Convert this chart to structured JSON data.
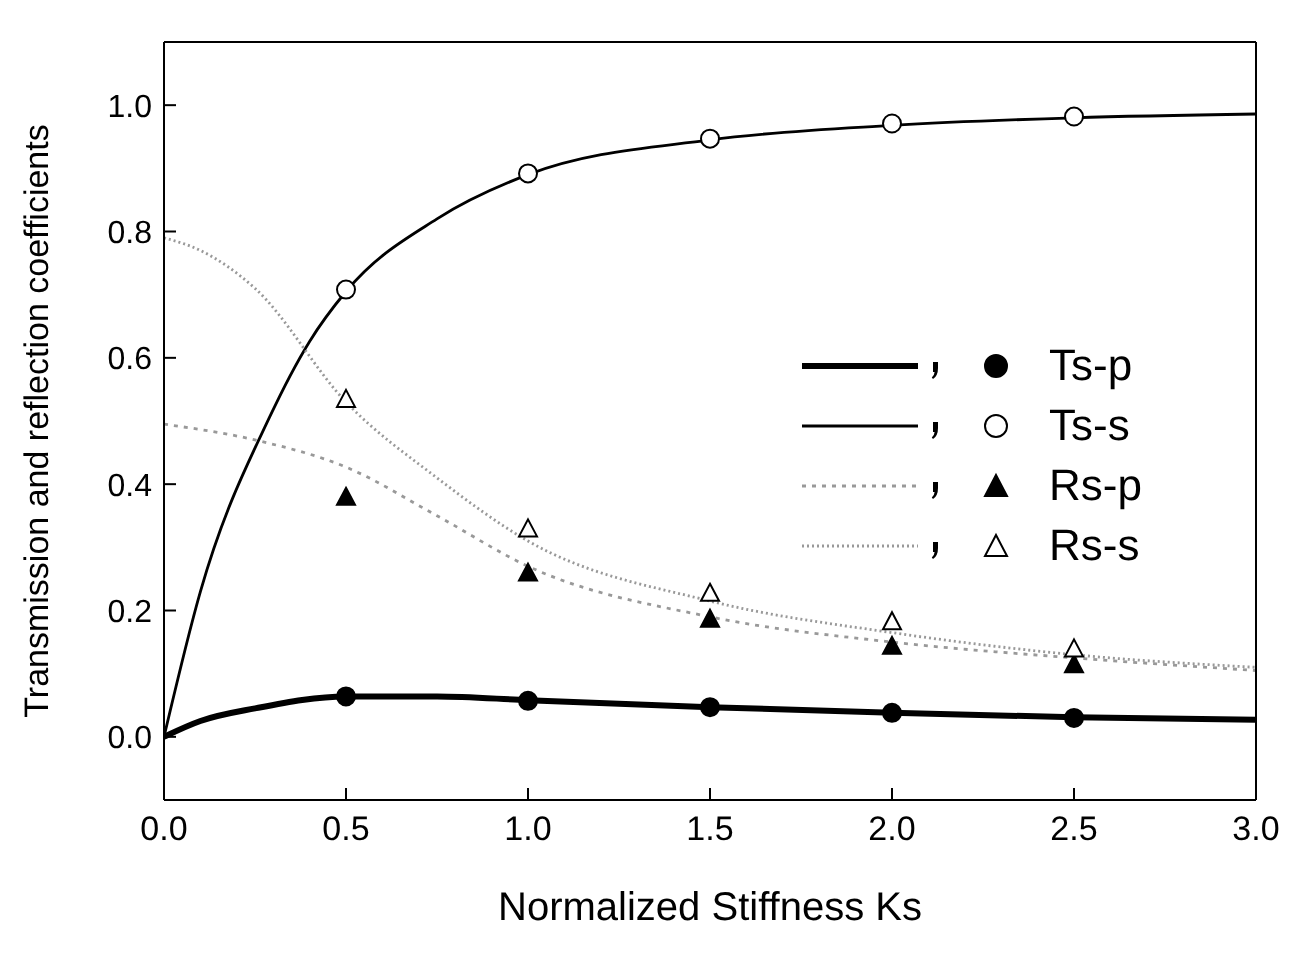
{
  "chart_data": {
    "type": "line",
    "xlabel": "Normalized Stiffness Ks",
    "ylabel": "Transmission and reflection coefficients",
    "xlim": [
      0,
      3
    ],
    "xticks": [
      {
        "value": 0,
        "label": "0.0"
      },
      {
        "value": 0.5,
        "label": "0.5"
      },
      {
        "value": 1,
        "label": "1.0"
      },
      {
        "value": 1.5,
        "label": "1.5"
      },
      {
        "value": 2,
        "label": "2.0"
      },
      {
        "value": 2.5,
        "label": "2.5"
      },
      {
        "value": 3,
        "label": "3.0"
      }
    ],
    "ylim": [
      -0.1,
      1.1
    ],
    "yticks": [
      {
        "value": 0,
        "label": "0.0"
      },
      {
        "value": 0.2,
        "label": "0.2"
      },
      {
        "value": 0.4,
        "label": "0.4"
      },
      {
        "value": 0.6,
        "label": "0.6"
      },
      {
        "value": 0.8,
        "label": "0.8"
      },
      {
        "value": 1,
        "label": "1.0"
      }
    ],
    "legend": "right",
    "series": [
      {
        "color": "#000000",
        "line_style": "solid",
        "marker": "none",
        "x": [
          0,
          0.1,
          0.25,
          0.5,
          0.75,
          1.0,
          1.5,
          2.0,
          2.5,
          3.0
        ],
        "values": [
          0,
          0.025,
          0.045,
          0.064,
          0.064,
          0.058,
          0.047,
          0.038,
          0.031,
          0.027
        ]
      },
      {
        "color": "#000000",
        "line_style": "solid",
        "marker": "none",
        "x": [
          0,
          0.1,
          0.29,
          0.4,
          0.5,
          0.75,
          1.0,
          1.5,
          2.0,
          2.5,
          3.0
        ],
        "values": [
          0,
          0.23,
          0.506,
          0.626,
          0.705,
          0.82,
          0.89,
          0.945,
          0.968,
          0.98,
          0.986
        ]
      },
      {
        "color": "#999999",
        "line_style": "dashed",
        "marker": "none",
        "x": [
          0,
          0.25,
          0.5,
          0.75,
          1.0,
          1.5,
          2.0,
          2.5,
          3.0
        ],
        "values": [
          0.495,
          0.47,
          0.427,
          0.35,
          0.27,
          0.19,
          0.15,
          0.125,
          0.105
        ]
      },
      {
        "color": "#999999",
        "line_style": "dotted",
        "marker": "none",
        "x": [
          0,
          0.1,
          0.25,
          0.5,
          0.75,
          1.0,
          1.5,
          2.0,
          2.5,
          3.0
        ],
        "values": [
          0.79,
          0.77,
          0.71,
          0.53,
          0.41,
          0.31,
          0.215,
          0.165,
          0.13,
          0.11
        ]
      },
      {
        "type": "scatter",
        "name": "Ts-p",
        "color": "#000000",
        "marker": "circle",
        "x": [
          0.5,
          1.0,
          1.5,
          2.0,
          2.5
        ],
        "values": [
          0.064,
          0.057,
          0.047,
          0.038,
          0.03
        ]
      },
      {
        "type": "scatter",
        "name": "Ts-s",
        "color": "#ffffff",
        "marker": "circle",
        "x": [
          0.5,
          1.0,
          1.5,
          2.0,
          2.5
        ],
        "values": [
          0.708,
          0.892,
          0.947,
          0.971,
          0.982
        ]
      },
      {
        "type": "scatter",
        "name": "Rs-p",
        "color": "#000000",
        "marker": "triangle",
        "x": [
          0.5,
          1.0,
          1.5,
          2.0,
          2.5
        ],
        "values": [
          0.38,
          0.26,
          0.187,
          0.144,
          0.115
        ]
      },
      {
        "type": "scatter",
        "name": "Rs-s",
        "color": "#ffffff",
        "marker": "triangle",
        "x": [
          0.5,
          1.0,
          1.5,
          2.0,
          2.5
        ],
        "values": [
          0.535,
          0.33,
          0.228,
          0.183,
          0.14
        ]
      }
    ]
  }
}
